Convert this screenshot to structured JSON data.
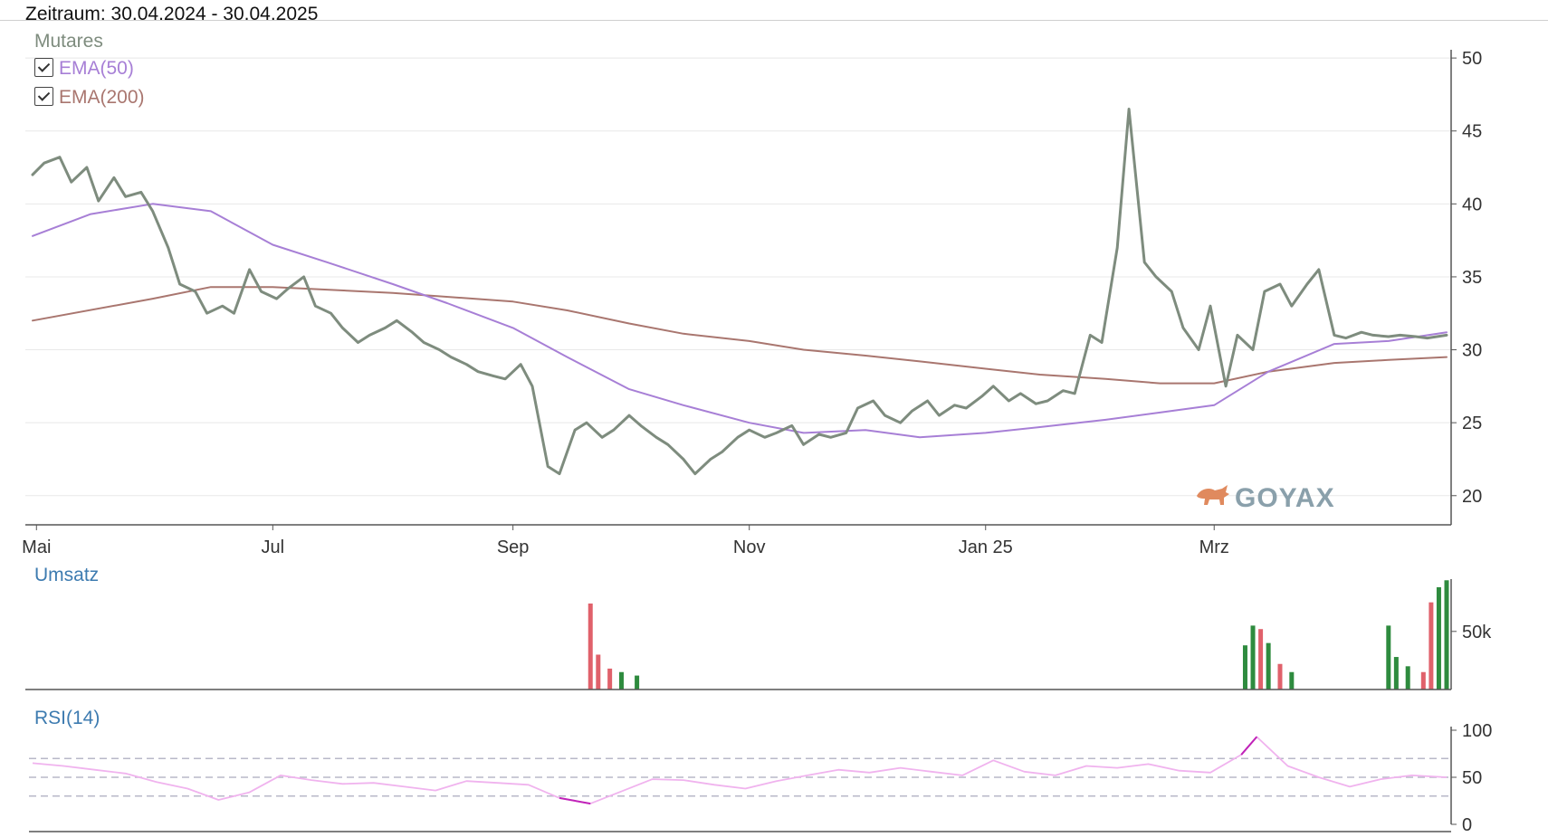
{
  "header": {
    "period_label": "Zeitraum: 30.04.2024 - 30.04.2025"
  },
  "legend": {
    "main": "Mutares",
    "ema50": "EMA(50)",
    "ema200": "EMA(200)"
  },
  "watermark": "GOYAX",
  "colors": {
    "price": "#7e8c7e",
    "ema50": "#a77fd6",
    "ema200": "#a9766f",
    "vol_up": "#2e8b3e",
    "vol_down": "#e0616b",
    "rsi": "#f0b3ee",
    "rsi_extreme": "#c022b8",
    "grid": "#e8e8e8",
    "accent_title": "#3d7bb0"
  },
  "chart_data": [
    {
      "type": "line",
      "panel": "price",
      "title": "Mutares",
      "x_range": [
        "2024-04-30",
        "2025-04-30"
      ],
      "x_ticks": [
        {
          "date": "2024-05-01",
          "label": "Mai"
        },
        {
          "date": "2024-07-01",
          "label": "Jul"
        },
        {
          "date": "2024-09-01",
          "label": "Sep"
        },
        {
          "date": "2024-11-01",
          "label": "Nov"
        },
        {
          "date": "2025-01-01",
          "label": "Jan 25"
        },
        {
          "date": "2025-03-01",
          "label": "Mrz"
        }
      ],
      "ylim": [
        18,
        51
      ],
      "y_ticks": [
        20,
        25,
        30,
        35,
        40,
        45,
        50
      ],
      "y_axis_position": "right",
      "grid": true,
      "legend_position": "top-left",
      "series": [
        {
          "name": "Mutares",
          "x": [
            "2024-04-30",
            "2024-05-03",
            "2024-05-07",
            "2024-05-10",
            "2024-05-14",
            "2024-05-17",
            "2024-05-21",
            "2024-05-24",
            "2024-05-28",
            "2024-05-31",
            "2024-06-04",
            "2024-06-07",
            "2024-06-11",
            "2024-06-14",
            "2024-06-18",
            "2024-06-21",
            "2024-06-25",
            "2024-06-28",
            "2024-07-02",
            "2024-07-05",
            "2024-07-09",
            "2024-07-12",
            "2024-07-16",
            "2024-07-19",
            "2024-07-23",
            "2024-07-26",
            "2024-07-30",
            "2024-08-02",
            "2024-08-06",
            "2024-08-09",
            "2024-08-13",
            "2024-08-16",
            "2024-08-20",
            "2024-08-23",
            "2024-08-27",
            "2024-08-30",
            "2024-09-03",
            "2024-09-06",
            "2024-09-10",
            "2024-09-13",
            "2024-09-17",
            "2024-09-20",
            "2024-09-24",
            "2024-09-27",
            "2024-10-01",
            "2024-10-04",
            "2024-10-08",
            "2024-10-11",
            "2024-10-15",
            "2024-10-18",
            "2024-10-22",
            "2024-10-25",
            "2024-10-29",
            "2024-11-01",
            "2024-11-05",
            "2024-11-08",
            "2024-11-12",
            "2024-11-15",
            "2024-11-19",
            "2024-11-22",
            "2024-11-26",
            "2024-11-29",
            "2024-12-03",
            "2024-12-06",
            "2024-12-10",
            "2024-12-13",
            "2024-12-17",
            "2024-12-20",
            "2024-12-24",
            "2024-12-27",
            "2024-12-31",
            "2025-01-03",
            "2025-01-07",
            "2025-01-10",
            "2025-01-14",
            "2025-01-17",
            "2025-01-21",
            "2025-01-24",
            "2025-01-28",
            "2025-01-31",
            "2025-02-04",
            "2025-02-07",
            "2025-02-11",
            "2025-02-14",
            "2025-02-18",
            "2025-02-21",
            "2025-02-25",
            "2025-02-28",
            "2025-03-04",
            "2025-03-07",
            "2025-03-11",
            "2025-03-14",
            "2025-03-18",
            "2025-03-21",
            "2025-03-25",
            "2025-03-28",
            "2025-04-01",
            "2025-04-04",
            "2025-04-08",
            "2025-04-11",
            "2025-04-15",
            "2025-04-18",
            "2025-04-22",
            "2025-04-25",
            "2025-04-30"
          ],
          "y": [
            42.0,
            42.8,
            43.2,
            41.5,
            42.5,
            40.2,
            41.8,
            40.5,
            40.8,
            39.5,
            37.0,
            34.5,
            34.0,
            32.5,
            33.0,
            32.5,
            35.5,
            34.0,
            33.5,
            34.2,
            35.0,
            33.0,
            32.5,
            31.5,
            30.5,
            31.0,
            31.5,
            32.0,
            31.2,
            30.5,
            30.0,
            29.5,
            29.0,
            28.5,
            28.2,
            28.0,
            29.0,
            27.5,
            22.0,
            21.5,
            24.5,
            25.0,
            24.0,
            24.5,
            25.5,
            24.8,
            24.0,
            23.5,
            22.5,
            21.5,
            22.5,
            23.0,
            24.0,
            24.5,
            24.0,
            24.3,
            24.8,
            23.5,
            24.2,
            24.0,
            24.3,
            26.0,
            26.5,
            25.5,
            25.0,
            25.8,
            26.5,
            25.5,
            26.2,
            26.0,
            26.8,
            27.5,
            26.5,
            27.0,
            26.3,
            26.5,
            27.2,
            27.0,
            31.0,
            30.5,
            37.0,
            46.5,
            36.0,
            35.0,
            34.0,
            31.5,
            30.0,
            33.0,
            27.5,
            31.0,
            30.0,
            34.0,
            34.5,
            33.0,
            34.5,
            35.5,
            31.0,
            30.8,
            31.2,
            31.0,
            30.9,
            31.0,
            30.9,
            30.8,
            31.0
          ]
        },
        {
          "name": "EMA(50)",
          "x": [
            "2024-04-30",
            "2024-05-15",
            "2024-05-31",
            "2024-06-15",
            "2024-07-01",
            "2024-07-15",
            "2024-08-01",
            "2024-08-15",
            "2024-09-01",
            "2024-09-15",
            "2024-10-01",
            "2024-10-15",
            "2024-11-01",
            "2024-11-15",
            "2024-12-01",
            "2024-12-15",
            "2025-01-01",
            "2025-01-15",
            "2025-02-01",
            "2025-02-15",
            "2025-03-01",
            "2025-03-15",
            "2025-04-01",
            "2025-04-15",
            "2025-04-30"
          ],
          "y": [
            37.8,
            39.3,
            40.0,
            39.5,
            37.2,
            36.0,
            34.5,
            33.2,
            31.5,
            29.5,
            27.3,
            26.2,
            25.0,
            24.3,
            24.5,
            24.0,
            24.3,
            24.7,
            25.2,
            25.7,
            26.2,
            28.5,
            30.4,
            30.6,
            31.2
          ]
        },
        {
          "name": "EMA(200)",
          "x": [
            "2024-04-30",
            "2024-05-31",
            "2024-06-15",
            "2024-07-01",
            "2024-08-01",
            "2024-09-01",
            "2024-09-15",
            "2024-10-01",
            "2024-10-15",
            "2024-11-01",
            "2024-11-15",
            "2024-12-01",
            "2024-12-15",
            "2025-01-01",
            "2025-01-15",
            "2025-02-01",
            "2025-02-15",
            "2025-03-01",
            "2025-03-15",
            "2025-04-01",
            "2025-04-15",
            "2025-04-30"
          ],
          "y": [
            32.0,
            33.5,
            34.3,
            34.3,
            33.9,
            33.3,
            32.7,
            31.8,
            31.1,
            30.6,
            30.0,
            29.6,
            29.2,
            28.7,
            28.3,
            28.0,
            27.7,
            27.7,
            28.5,
            29.1,
            29.3,
            29.5
          ]
        }
      ]
    },
    {
      "type": "bar",
      "panel": "volume",
      "title": "Umsatz",
      "x_range": [
        "2024-04-30",
        "2025-04-30"
      ],
      "ylim": [
        0,
        95000
      ],
      "y_ticks": [
        50000
      ],
      "y_tick_labels": [
        "50k"
      ],
      "y_axis_position": "right",
      "bars": [
        {
          "date": "2024-09-21",
          "value": 74000,
          "dir": "down"
        },
        {
          "date": "2024-09-23",
          "value": 30000,
          "dir": "down"
        },
        {
          "date": "2024-09-26",
          "value": 18000,
          "dir": "down"
        },
        {
          "date": "2024-09-29",
          "value": 15000,
          "dir": "up"
        },
        {
          "date": "2024-10-03",
          "value": 12000,
          "dir": "up"
        },
        {
          "date": "2025-03-09",
          "value": 38000,
          "dir": "up"
        },
        {
          "date": "2025-03-11",
          "value": 55000,
          "dir": "up"
        },
        {
          "date": "2025-03-13",
          "value": 52000,
          "dir": "down"
        },
        {
          "date": "2025-03-15",
          "value": 40000,
          "dir": "up"
        },
        {
          "date": "2025-03-18",
          "value": 22000,
          "dir": "down"
        },
        {
          "date": "2025-03-21",
          "value": 15000,
          "dir": "up"
        },
        {
          "date": "2025-04-15",
          "value": 55000,
          "dir": "up"
        },
        {
          "date": "2025-04-17",
          "value": 28000,
          "dir": "up"
        },
        {
          "date": "2025-04-20",
          "value": 20000,
          "dir": "up"
        },
        {
          "date": "2025-04-24",
          "value": 15000,
          "dir": "down"
        },
        {
          "date": "2025-04-26",
          "value": 75000,
          "dir": "down"
        },
        {
          "date": "2025-04-28",
          "value": 88000,
          "dir": "up"
        },
        {
          "date": "2025-04-30",
          "value": 94000,
          "dir": "up"
        }
      ]
    },
    {
      "type": "line",
      "panel": "rsi",
      "title": "RSI(14)",
      "x_range": [
        "2024-04-30",
        "2025-04-30"
      ],
      "ylim": [
        0,
        100
      ],
      "y_ticks": [
        0,
        50,
        100
      ],
      "reference_lines": [
        30,
        50,
        70
      ],
      "y_axis_position": "right",
      "series": [
        {
          "name": "RSI(14)",
          "x": [
            "2024-04-30",
            "2024-05-08",
            "2024-05-16",
            "2024-05-24",
            "2024-06-01",
            "2024-06-09",
            "2024-06-17",
            "2024-06-25",
            "2024-07-03",
            "2024-07-11",
            "2024-07-19",
            "2024-07-27",
            "2024-08-04",
            "2024-08-12",
            "2024-08-20",
            "2024-08-28",
            "2024-09-05",
            "2024-09-13",
            "2024-09-21",
            "2024-09-29",
            "2024-10-07",
            "2024-10-15",
            "2024-10-23",
            "2024-10-31",
            "2024-11-08",
            "2024-11-16",
            "2024-11-24",
            "2024-12-02",
            "2024-12-10",
            "2024-12-18",
            "2024-12-26",
            "2025-01-03",
            "2025-01-11",
            "2025-01-19",
            "2025-01-27",
            "2025-02-04",
            "2025-02-12",
            "2025-02-20",
            "2025-02-28",
            "2025-03-08",
            "2025-03-12",
            "2025-03-20",
            "2025-03-28",
            "2025-04-05",
            "2025-04-13",
            "2025-04-21",
            "2025-04-30"
          ],
          "y": [
            65,
            62,
            58,
            54,
            45,
            38,
            26,
            34,
            52,
            47,
            43,
            44,
            40,
            36,
            46,
            44,
            42,
            28,
            22,
            35,
            48,
            47,
            42,
            38,
            46,
            52,
            58,
            55,
            60,
            56,
            52,
            68,
            56,
            52,
            62,
            60,
            64,
            57,
            55,
            74,
            93,
            62,
            50,
            40,
            48,
            52,
            50
          ]
        }
      ]
    }
  ]
}
